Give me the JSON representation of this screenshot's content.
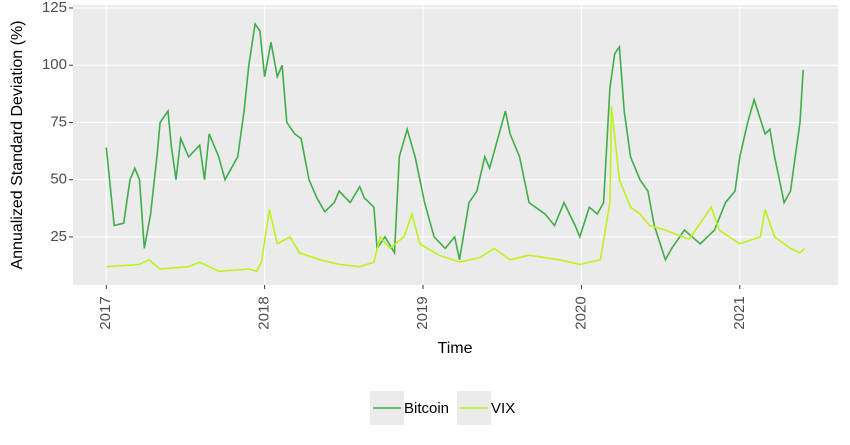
{
  "chart_data": {
    "type": "line",
    "xlabel": "Time",
    "ylabel": "Annualized Standard Deviation (%)",
    "xlim": [
      2016.79,
      2021.62
    ],
    "xticks": [
      2017,
      2018,
      2019,
      2020,
      2021
    ],
    "ylim": [
      4,
      126.3
    ],
    "yticks": [
      25,
      50,
      75,
      100,
      125
    ],
    "grid": true,
    "legend": "bottom",
    "series": [
      {
        "name": "Bitcoin",
        "color": "#3fae49",
        "x": [
          2017.0,
          2017.05,
          2017.11,
          2017.15,
          2017.18,
          2017.21,
          2017.24,
          2017.28,
          2017.32,
          2017.34,
          2017.39,
          2017.41,
          2017.44,
          2017.47,
          2017.52,
          2017.59,
          2017.62,
          2017.65,
          2017.71,
          2017.75,
          2017.79,
          2017.83,
          2017.87,
          2017.9,
          2017.94,
          2017.97,
          2018.0,
          2018.04,
          2018.08,
          2018.11,
          2018.14,
          2018.19,
          2018.23,
          2018.28,
          2018.33,
          2018.38,
          2018.44,
          2018.47,
          2018.54,
          2018.6,
          2018.63,
          2018.69,
          2018.71,
          2018.76,
          2018.82,
          2018.85,
          2018.9,
          2018.95,
          2019.01,
          2019.07,
          2019.14,
          2019.2,
          2019.23,
          2019.29,
          2019.34,
          2019.39,
          2019.42,
          2019.52,
          2019.55,
          2019.61,
          2019.67,
          2019.77,
          2019.83,
          2019.89,
          2019.96,
          2019.99,
          2020.05,
          2020.1,
          2020.14,
          2020.18,
          2020.21,
          2020.24,
          2020.27,
          2020.31,
          2020.37,
          2020.42,
          2020.46,
          2020.53,
          2020.57,
          2020.65,
          2020.75,
          2020.84,
          2020.91,
          2020.97,
          2021.0,
          2021.05,
          2021.09,
          2021.16,
          2021.19,
          2021.22,
          2021.25,
          2021.28,
          2021.32,
          2021.35,
          2021.38,
          2021.4
        ],
        "values": [
          64,
          30,
          31,
          50,
          55,
          50,
          20,
          35,
          60,
          75,
          80,
          65,
          50,
          68,
          60,
          65,
          50,
          70,
          60,
          50,
          55,
          60,
          80,
          100,
          118,
          115,
          95,
          110,
          95,
          100,
          75,
          70,
          68,
          50,
          42,
          36,
          40,
          45,
          40,
          47,
          42,
          38,
          20,
          25,
          18,
          60,
          72,
          60,
          40,
          25,
          20,
          25,
          15,
          40,
          45,
          60,
          55,
          80,
          70,
          60,
          40,
          35,
          30,
          40,
          30,
          25,
          38,
          35,
          40,
          90,
          105,
          108,
          80,
          60,
          50,
          45,
          30,
          15,
          20,
          28,
          22,
          28,
          40,
          45,
          60,
          75,
          85,
          70,
          72,
          60,
          50,
          40,
          45,
          60,
          75,
          98
        ]
      },
      {
        "name": "VIX",
        "color": "#bdf21c",
        "x": [
          2017.0,
          2017.21,
          2017.27,
          2017.34,
          2017.52,
          2017.59,
          2017.71,
          2017.9,
          2017.95,
          2017.98,
          2018.03,
          2018.08,
          2018.16,
          2018.22,
          2018.35,
          2018.47,
          2018.6,
          2018.69,
          2018.73,
          2018.79,
          2018.88,
          2018.93,
          2018.98,
          2019.1,
          2019.23,
          2019.36,
          2019.45,
          2019.55,
          2019.67,
          2019.86,
          2019.99,
          2020.12,
          2020.18,
          2020.19,
          2020.24,
          2020.31,
          2020.37,
          2020.43,
          2020.53,
          2020.68,
          2020.82,
          2020.87,
          2021.0,
          2021.13,
          2021.16,
          2021.22,
          2021.32,
          2021.38,
          2021.41
        ],
        "values": [
          12,
          13,
          15,
          11,
          12,
          14,
          10,
          11,
          10,
          14,
          37,
          22,
          25,
          18,
          15,
          13,
          12,
          14,
          25,
          20,
          25,
          35,
          22,
          17,
          14,
          16,
          20,
          15,
          17,
          15,
          13,
          15,
          40,
          82,
          50,
          38,
          35,
          30,
          28,
          24,
          38,
          28,
          22,
          25,
          37,
          25,
          20,
          18,
          20
        ]
      }
    ]
  }
}
